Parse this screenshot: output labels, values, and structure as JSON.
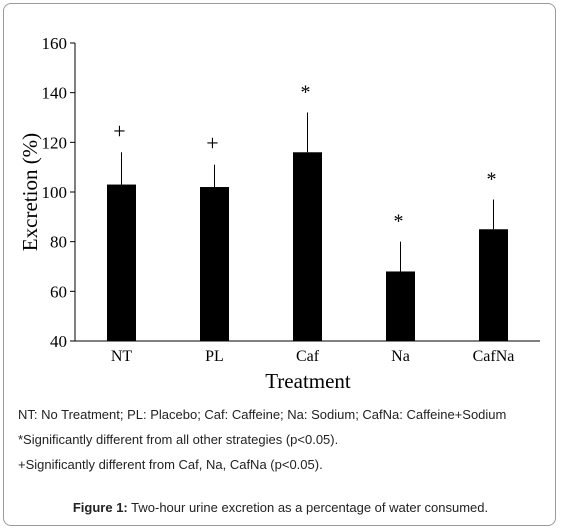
{
  "chart_data": {
    "type": "bar",
    "categories": [
      "NT",
      "PL",
      "Caf",
      "Na",
      "CafNa"
    ],
    "values": [
      103,
      102,
      116,
      68,
      85
    ],
    "error_upper": [
      116,
      111,
      132,
      80,
      97
    ],
    "markers": [
      "+",
      "+",
      "*",
      "*",
      "*"
    ],
    "xlabel": "Treatment",
    "ylabel": "Excretion (%)",
    "ylim": [
      40,
      160
    ],
    "yticks": [
      "40",
      "60",
      "80",
      "100",
      "120",
      "140",
      "160"
    ],
    "grid": false,
    "bar_color": "#000000"
  },
  "captions": {
    "legend": "NT: No Treatment; PL: Placebo; Caf: Caffeine; Na: Sodium; CafNa: Caffeine+Sodium",
    "note_star": "*Significantly different from all other strategies (p<0.05).",
    "note_plus": "+Significantly different from Caf, Na, CafNa (p<0.05).",
    "figure_label": "Figure 1:",
    "figure_text": " Two-hour urine excretion as a percentage of water consumed."
  }
}
